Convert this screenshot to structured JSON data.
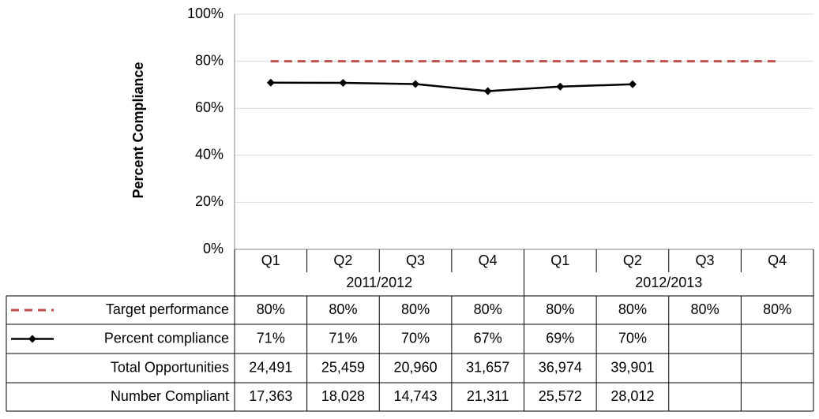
{
  "chart_data": {
    "type": "line",
    "y_label": "Percent Compliance",
    "categories": [
      "Q1",
      "Q2",
      "Q3",
      "Q4",
      "Q1",
      "Q2",
      "Q3",
      "Q4"
    ],
    "groups": [
      {
        "label": "2011/2012",
        "span": 4
      },
      {
        "label": "2012/2013",
        "span": 4
      }
    ],
    "series": [
      {
        "name": "Target performance",
        "color": "#c0504d",
        "dashed": true,
        "values": [
          80,
          80,
          80,
          80,
          80,
          80,
          80,
          80
        ],
        "value_labels": [
          "80%",
          "80%",
          "80%",
          "80%",
          "80%",
          "80%",
          "80%",
          "80%"
        ]
      },
      {
        "name": "Percent compliance",
        "color": "#000000",
        "marker": "diamond",
        "values": [
          70.9,
          70.8,
          70.3,
          67.3,
          69.2,
          70.2,
          null,
          null
        ],
        "value_labels": [
          "71%",
          "71%",
          "70%",
          "67%",
          "69%",
          "70%",
          null,
          null
        ]
      }
    ],
    "data_table": [
      {
        "name": "Total Opportunities",
        "cells": [
          "24,491",
          "25,459",
          "20,960",
          "31,657",
          "36,974",
          "39,901",
          null,
          null
        ]
      },
      {
        "name": "Number Compliant",
        "cells": [
          "17,363",
          "18,028",
          "14,743",
          "21,311",
          "25,572",
          "28,012",
          null,
          null
        ]
      }
    ],
    "ylim": [
      0,
      100
    ],
    "yticks": [
      {
        "value": 0,
        "label": "0%"
      },
      {
        "value": 20,
        "label": "20%"
      },
      {
        "value": 40,
        "label": "40%"
      },
      {
        "value": 60,
        "label": "60%"
      },
      {
        "value": 80,
        "label": "80%"
      },
      {
        "value": 100,
        "label": "100%"
      }
    ],
    "grid": true
  }
}
